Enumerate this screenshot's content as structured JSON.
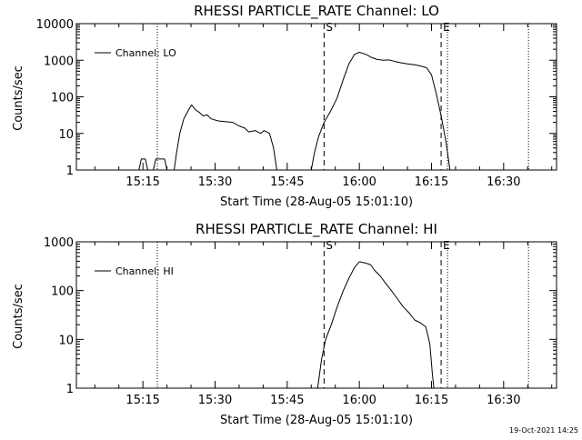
{
  "footer": {
    "timestamp": "19-Oct-2021 14:25"
  },
  "chart_data": [
    {
      "type": "line",
      "title": "RHESSI PARTICLE_RATE Channel: LO",
      "xlabel": "Start Time (28-Aug-05 15:01:10)",
      "ylabel": "Counts/sec",
      "yscale": "log",
      "ylim": [
        1,
        10000
      ],
      "ytick_values": [
        1,
        10,
        100,
        1000,
        10000
      ],
      "ytick_labels": [
        "1",
        "10",
        "100",
        "1000",
        "10000"
      ],
      "xlim": [
        "15:01:10",
        "16:41:00"
      ],
      "xtick_labels": [
        "15:15",
        "15:30",
        "15:45",
        "16:00",
        "16:15",
        "16:30"
      ],
      "legend": {
        "entry": "Channel: LO",
        "placement": "top-left"
      },
      "markers": [
        {
          "label": "S",
          "time": "15:52:40",
          "style": "dashed"
        },
        {
          "label": "E",
          "time": "16:17:00",
          "style": "dashed"
        }
      ],
      "vlines": [
        {
          "time": "15:18:00",
          "style": "dotted"
        },
        {
          "time": "16:18:20",
          "style": "dotted"
        },
        {
          "time": "16:35:10",
          "style": "dotted"
        }
      ],
      "series": [
        {
          "name": "Channel: LO",
          "points": [
            [
              "15:14:10",
              1
            ],
            [
              "15:14:40",
              2
            ],
            [
              "15:15:30",
              2
            ],
            [
              "15:16:00",
              1
            ],
            [
              "15:17:10",
              1
            ],
            [
              "15:17:40",
              2
            ],
            [
              "15:19:30",
              2
            ],
            [
              "15:20:00",
              1
            ],
            [
              "15:21:30",
              1
            ],
            [
              "15:22:00",
              3
            ],
            [
              "15:22:40",
              10
            ],
            [
              "15:23:30",
              25
            ],
            [
              "15:24:40",
              48
            ],
            [
              "15:25:10",
              60
            ],
            [
              "15:25:50",
              45
            ],
            [
              "15:26:40",
              38
            ],
            [
              "15:27:30",
              30
            ],
            [
              "15:28:20",
              32
            ],
            [
              "15:29:10",
              25
            ],
            [
              "15:30:40",
              22
            ],
            [
              "15:32:00",
              21
            ],
            [
              "15:33:40",
              20
            ],
            [
              "15:35:00",
              16
            ],
            [
              "15:36:10",
              14
            ],
            [
              "15:37:00",
              11
            ],
            [
              "15:38:20",
              12
            ],
            [
              "15:39:30",
              10
            ],
            [
              "15:40:10",
              12
            ],
            [
              "15:41:20",
              10
            ],
            [
              "15:42:10",
              4
            ],
            [
              "15:42:50",
              1
            ],
            [
              "15:50:00",
              1
            ],
            [
              "15:50:40",
              3
            ],
            [
              "15:51:30",
              8
            ],
            [
              "15:52:40",
              20
            ],
            [
              "15:54:00",
              40
            ],
            [
              "15:55:20",
              90
            ],
            [
              "15:56:40",
              300
            ],
            [
              "15:57:50",
              800
            ],
            [
              "15:59:00",
              1450
            ],
            [
              "16:00:00",
              1650
            ],
            [
              "16:01:20",
              1450
            ],
            [
              "16:02:30",
              1200
            ],
            [
              "16:03:40",
              1050
            ],
            [
              "16:05:00",
              1000
            ],
            [
              "16:06:10",
              1020
            ],
            [
              "16:07:30",
              920
            ],
            [
              "16:08:40",
              850
            ],
            [
              "16:10:00",
              800
            ],
            [
              "16:11:30",
              750
            ],
            [
              "16:12:40",
              700
            ],
            [
              "16:14:00",
              620
            ],
            [
              "16:15:00",
              400
            ],
            [
              "16:16:00",
              120
            ],
            [
              "16:17:00",
              30
            ],
            [
              "16:18:00",
              6
            ],
            [
              "16:18:50",
              1
            ]
          ]
        }
      ]
    },
    {
      "type": "line",
      "title": "RHESSI PARTICLE_RATE Channel: HI",
      "xlabel": "Start Time (28-Aug-05 15:01:10)",
      "ylabel": "Counts/sec",
      "yscale": "log",
      "ylim": [
        1,
        1000
      ],
      "ytick_values": [
        1,
        10,
        100,
        1000
      ],
      "ytick_labels": [
        "1",
        "10",
        "100",
        "1000"
      ],
      "xlim": [
        "15:01:10",
        "16:41:00"
      ],
      "xtick_labels": [
        "15:15",
        "15:30",
        "15:45",
        "16:00",
        "16:15",
        "16:30"
      ],
      "legend": {
        "entry": "Channel: HI",
        "placement": "top-left"
      },
      "markers": [
        {
          "label": "S",
          "time": "15:52:40",
          "style": "dashed"
        },
        {
          "label": "E",
          "time": "16:17:00",
          "style": "dashed"
        }
      ],
      "vlines": [
        {
          "time": "15:18:00",
          "style": "dotted"
        },
        {
          "time": "16:18:20",
          "style": "dotted"
        },
        {
          "time": "16:35:10",
          "style": "dotted"
        }
      ],
      "series": [
        {
          "name": "Channel: HI",
          "points": [
            [
              "15:51:20",
              1
            ],
            [
              "15:52:10",
              4
            ],
            [
              "15:53:00",
              10
            ],
            [
              "15:54:10",
              20
            ],
            [
              "15:55:20",
              45
            ],
            [
              "15:56:40",
              100
            ],
            [
              "15:57:50",
              180
            ],
            [
              "15:59:00",
              300
            ],
            [
              "16:00:00",
              390
            ],
            [
              "16:01:10",
              370
            ],
            [
              "16:02:20",
              340
            ],
            [
              "16:03:10",
              260
            ],
            [
              "16:04:20",
              200
            ],
            [
              "16:05:30",
              140
            ],
            [
              "16:06:40",
              100
            ],
            [
              "16:07:50",
              70
            ],
            [
              "16:09:00",
              48
            ],
            [
              "16:10:20",
              35
            ],
            [
              "16:11:30",
              25
            ],
            [
              "16:12:40",
              22
            ],
            [
              "16:13:50",
              18
            ],
            [
              "16:14:40",
              8
            ],
            [
              "16:15:10",
              2
            ],
            [
              "16:15:30",
              1
            ]
          ]
        }
      ]
    }
  ]
}
